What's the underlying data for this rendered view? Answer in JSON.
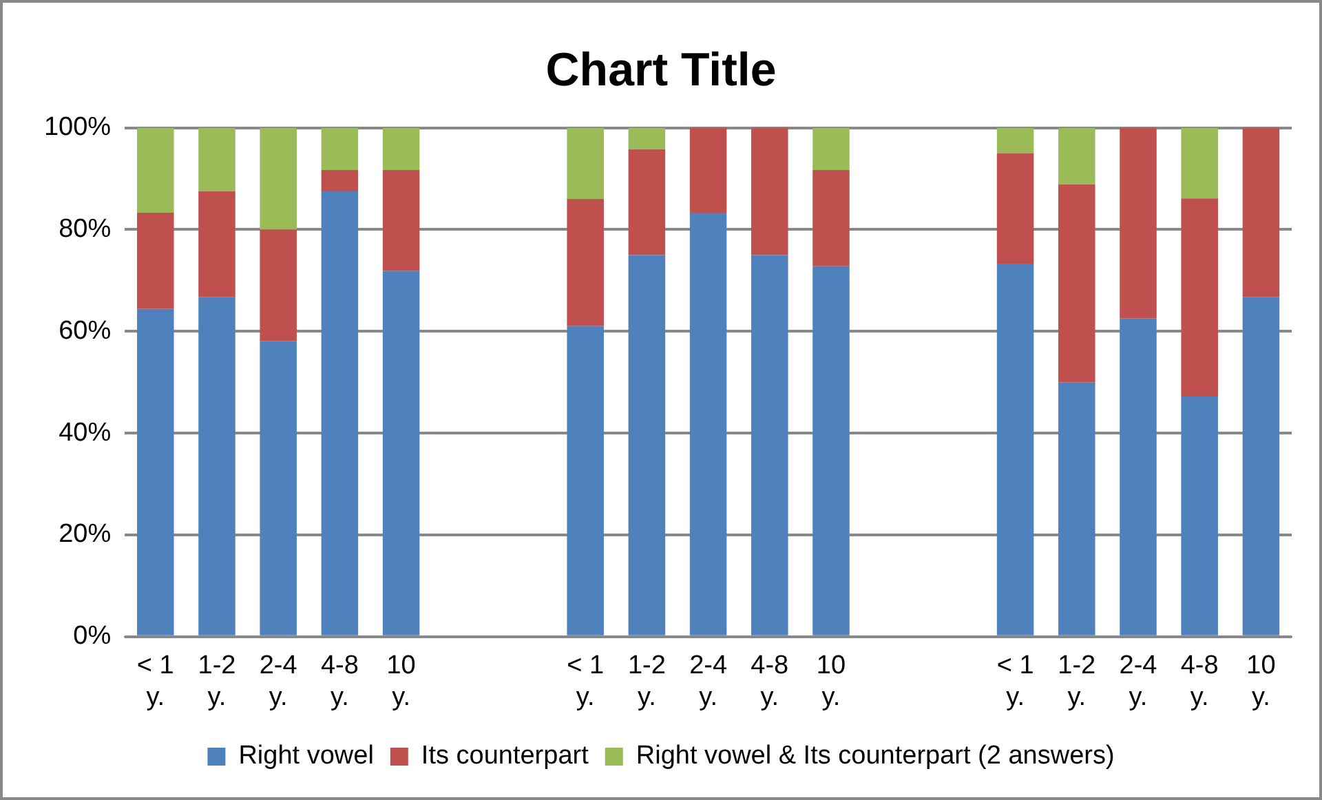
{
  "chart_data": {
    "type": "bar",
    "title": "Chart Title",
    "stacked": true,
    "categories": [
      "< 1 y.",
      "1-2 y.",
      "2-4 y.",
      "4-8 y.",
      "10 y.",
      null,
      null,
      "< 1 y.",
      "1-2 y.",
      "2-4 y.",
      "4-8 y.",
      "10 y.",
      null,
      null,
      "< 1 y.",
      "1-2 y.",
      "2-4 y.",
      "4-8 y.",
      "10 y."
    ],
    "series": [
      {
        "name": "Right vowel",
        "color": "#4f81bd",
        "values": [
          64.4,
          66.7,
          58.1,
          87.5,
          71.9,
          null,
          null,
          61.1,
          75,
          83.3,
          75,
          72.8,
          null,
          null,
          73.3,
          50,
          62.5,
          47.2,
          66.7
        ]
      },
      {
        "name": "Its counterpart",
        "color": "#c0504d",
        "values": [
          18.9,
          20.8,
          21.9,
          4.2,
          19.8,
          null,
          null,
          24.9,
          20.8,
          16.7,
          25,
          18.9,
          null,
          null,
          21.7,
          38.9,
          37.5,
          38.9,
          33.3
        ]
      },
      {
        "name": "Right vowel & Its counterpart (2 answers)",
        "color": "#9bbb59",
        "values": [
          16.7,
          12.5,
          20,
          8.3,
          8.3,
          null,
          null,
          14,
          4.2,
          0,
          0,
          8.3,
          null,
          null,
          5,
          11.1,
          0,
          13.9,
          0
        ]
      }
    ],
    "ylim": [
      0,
      100
    ],
    "yticks": [
      {
        "value": 0,
        "label": "0%"
      },
      {
        "value": 20,
        "label": "20%"
      },
      {
        "value": 40,
        "label": "40%"
      },
      {
        "value": 60,
        "label": "60%"
      },
      {
        "value": 80,
        "label": "80%"
      },
      {
        "value": 100,
        "label": "100%"
      }
    ],
    "grid": "y",
    "legend": "bottom"
  }
}
